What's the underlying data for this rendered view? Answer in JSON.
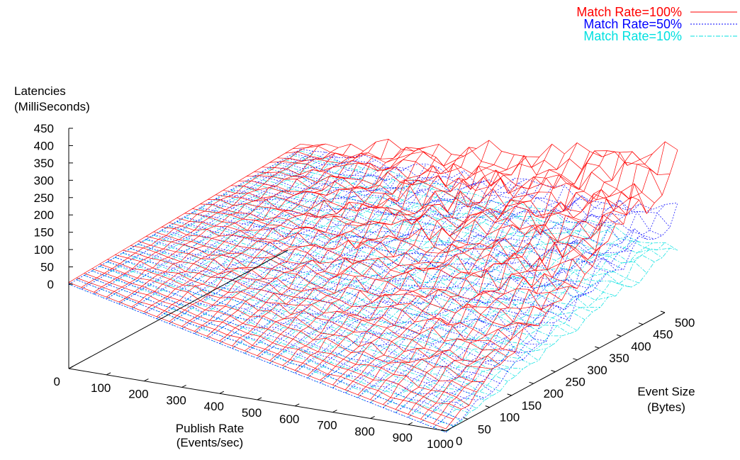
{
  "chart_data": {
    "type": "surface",
    "title": "",
    "zlabel": [
      "Latencies",
      "(MilliSeconds)"
    ],
    "xlabel": [
      "Publish Rate",
      "(Events/sec)"
    ],
    "ylabel": [
      "Event Size",
      "(Bytes)"
    ],
    "z_ticks": [
      "0",
      "50",
      "100",
      "150",
      "200",
      "250",
      "300",
      "350",
      "400",
      "450"
    ],
    "x_ticks": [
      "0",
      "100",
      "200",
      "300",
      "400",
      "500",
      "600",
      "700",
      "800",
      "900",
      "1000"
    ],
    "y_ticks": [
      "0",
      "50",
      "100",
      "150",
      "200",
      "250",
      "300",
      "350",
      "400",
      "450",
      "500"
    ],
    "xlim": [
      0,
      1000
    ],
    "ylim": [
      0,
      500
    ],
    "zlim": [
      0,
      450
    ],
    "legend_position": "top-right",
    "series": [
      {
        "name": "Match Rate=100%",
        "color": "#ff0000",
        "line_style": "solid",
        "corner_latency": {
          "x0_y0": 5,
          "x1000_y0": 10,
          "x0_y500": 20,
          "x1000_y500": 390
        },
        "peak_latency": 450
      },
      {
        "name": "Match Rate=50%",
        "color": "#0000ff",
        "line_style": "dotted",
        "corner_latency": {
          "x0_y0": 0,
          "x1000_y0": 0,
          "x0_y500": 5,
          "x1000_y500": 250
        },
        "peak_latency": 290
      },
      {
        "name": "Match Rate=10%",
        "color": "#00e0e0",
        "line_style": "dash-dot",
        "corner_latency": {
          "x0_y0": 0,
          "x1000_y0": 0,
          "x0_y500": 0,
          "x1000_y500": 150
        },
        "peak_latency": 160
      }
    ]
  }
}
